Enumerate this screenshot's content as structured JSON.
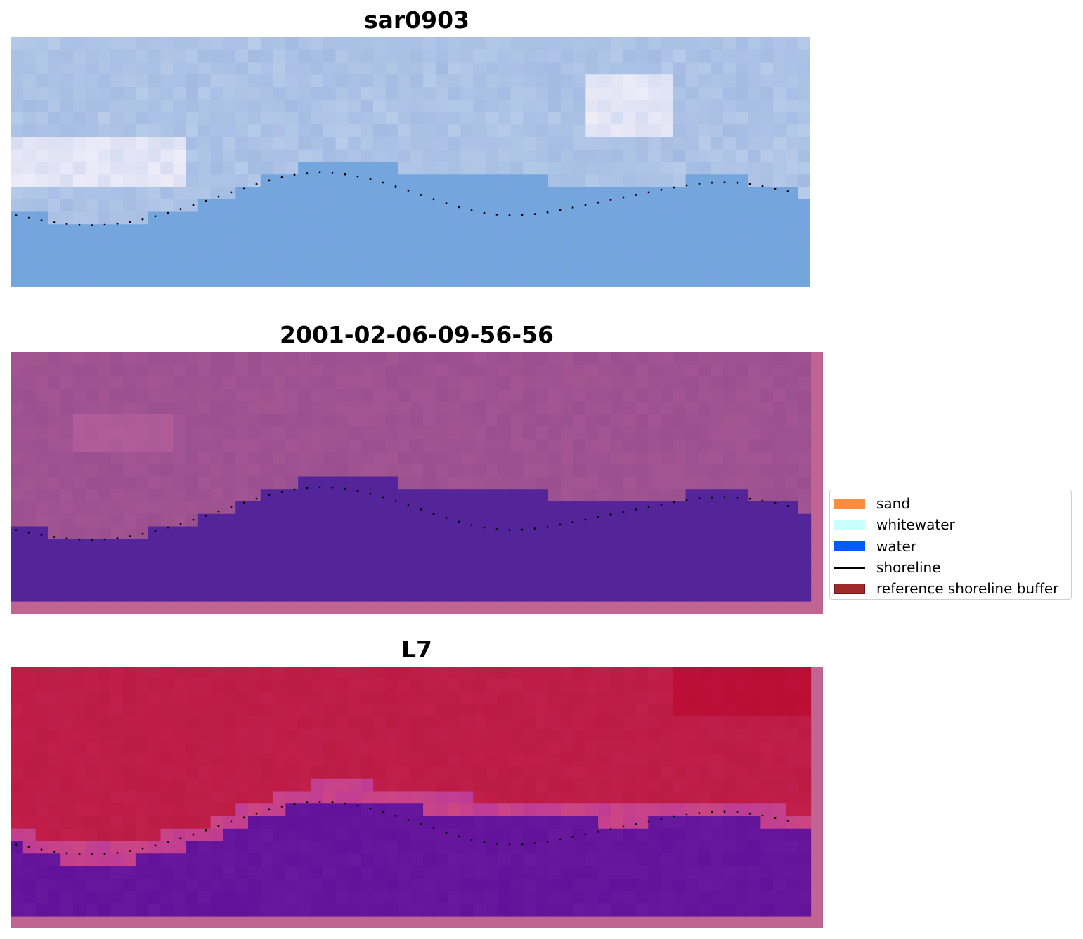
{
  "panels": [
    {
      "title": "sar0903",
      "style": "rgb"
    },
    {
      "title": "2001-02-06-09-56-56",
      "style": "classified"
    },
    {
      "title": "L7",
      "style": "nir"
    }
  ],
  "legend": {
    "items": [
      {
        "label": "sand",
        "color": "#ff8c3f",
        "kind": "patch"
      },
      {
        "label": "whitewater",
        "color": "#c9fffd",
        "kind": "patch"
      },
      {
        "label": "water",
        "color": "#005aff",
        "kind": "patch"
      },
      {
        "label": "shoreline",
        "color": "#000000",
        "kind": "line"
      },
      {
        "label": "reference shoreline buffer",
        "color": "#9e2a2a",
        "kind": "patch"
      }
    ]
  },
  "colors": {
    "rgb_sky": "#a9c2e3",
    "rgb_water": "#73a7dc",
    "classified_land": "#9a4f8f",
    "classified_water": "#53249a",
    "classified_border": "#c06592",
    "nir_land": "#c11f4b",
    "nir_water": "#62129a",
    "nir_border": "#c06592",
    "shoreline": "#000000"
  }
}
